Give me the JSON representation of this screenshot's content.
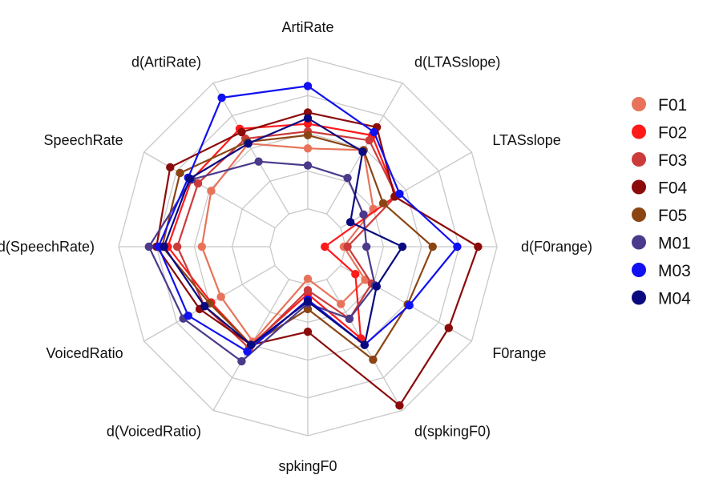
{
  "chart_data": {
    "type": "radar",
    "axes": [
      "ArtiRate",
      "d(LTASslope)",
      "LTASslope",
      "d(F0range)",
      "F0range",
      "d(spkingF0)",
      "spkingF0",
      "d(VoicedRatio)",
      "VoicedRatio",
      "d(SpeechRate)",
      "SpeechRate",
      "d(ArtiRate)"
    ],
    "rmax": 10,
    "grid_levels": 5,
    "grid": true,
    "legend_position": "right",
    "series": [
      {
        "name": "F01",
        "color": "#E8735A",
        "values": [
          5.2,
          5.9,
          4.0,
          1.9,
          3.5,
          3.5,
          1.7,
          5.8,
          5.3,
          5.6,
          5.9,
          6.3
        ]
      },
      {
        "name": "F02",
        "color": "#FF1A1A",
        "values": [
          6.5,
          6.8,
          5.4,
          0.9,
          2.9,
          5.6,
          2.5,
          6.0,
          5.9,
          7.4,
          7.1,
          7.2
        ]
      },
      {
        "name": "F03",
        "color": "#CC3B3B",
        "values": [
          6.1,
          6.5,
          5.4,
          2.1,
          3.9,
          4.4,
          2.3,
          6.2,
          6.3,
          6.9,
          6.7,
          6.6
        ]
      },
      {
        "name": "F04",
        "color": "#8B0A0A",
        "values": [
          7.1,
          7.3,
          5.3,
          9.0,
          8.6,
          9.7,
          4.5,
          6.0,
          6.6,
          8.0,
          8.4,
          7.0
        ]
      },
      {
        "name": "F05",
        "color": "#8B4513",
        "values": [
          5.9,
          5.9,
          4.6,
          6.6,
          6.1,
          6.9,
          3.3,
          6.0,
          6.0,
          7.7,
          7.8,
          6.4
        ]
      },
      {
        "name": "M01",
        "color": "#4B3A8C",
        "values": [
          4.3,
          4.2,
          3.4,
          3.1,
          4.1,
          4.4,
          3.0,
          7.0,
          7.6,
          8.4,
          7.1,
          5.2
        ]
      },
      {
        "name": "M03",
        "color": "#1010F0",
        "values": [
          8.5,
          7.0,
          5.6,
          7.9,
          6.2,
          6.0,
          2.8,
          6.4,
          7.3,
          7.9,
          7.3,
          9.1
        ]
      },
      {
        "name": "M04",
        "color": "#0A0A80",
        "values": [
          6.8,
          5.8,
          2.6,
          5.0,
          4.2,
          6.0,
          2.9,
          6.0,
          6.3,
          7.6,
          7.2,
          6.3
        ]
      }
    ]
  }
}
